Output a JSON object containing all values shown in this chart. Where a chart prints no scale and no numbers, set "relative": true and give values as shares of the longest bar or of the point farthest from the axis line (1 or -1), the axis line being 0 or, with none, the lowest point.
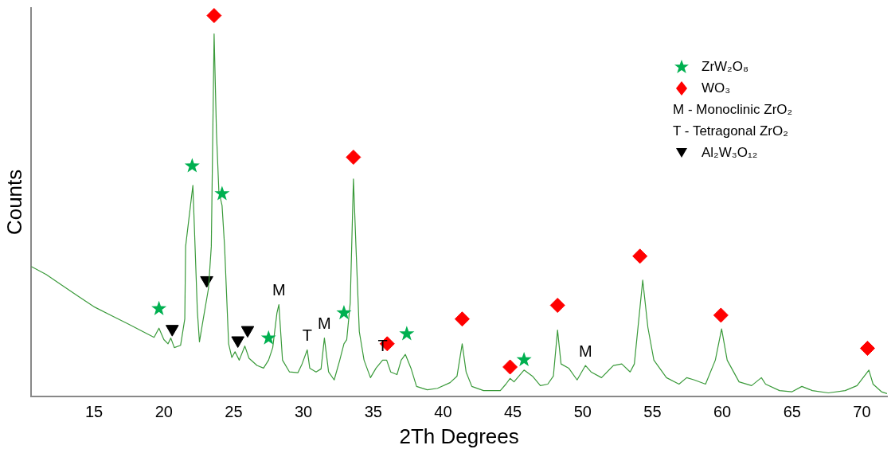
{
  "chart_data": {
    "type": "line",
    "xlabel": "2Th Degrees",
    "ylabel": "Counts",
    "relative": true,
    "xlim": [
      10.5,
      71.8
    ],
    "xticks": [
      15,
      20,
      25,
      30,
      35,
      40,
      45,
      50,
      55,
      60,
      65,
      70
    ],
    "grid": false,
    "legend": "top right",
    "series": [
      {
        "color": "#3a9a3a",
        "marker": "none",
        "x": [
          10.5,
          11.57,
          12.74,
          13.9,
          15.06,
          16.2,
          17.4,
          18.5,
          19.3,
          19.65,
          20.0,
          20.3,
          20.5,
          20.75,
          21.2,
          21.5,
          21.56,
          22.08,
          22.4,
          22.55,
          22.84,
          23.2,
          23.4,
          23.6,
          23.77,
          23.94,
          24.17,
          24.35,
          24.64,
          24.87,
          25.1,
          25.4,
          25.8,
          26.1,
          26.67,
          27.14,
          27.5,
          27.8,
          28.1,
          28.24,
          28.5,
          29.0,
          29.6,
          29.9,
          30.27,
          30.45,
          30.9,
          31.26,
          31.5,
          31.8,
          32.2,
          32.6,
          32.9,
          33.1,
          33.35,
          33.58,
          33.76,
          34.0,
          34.34,
          34.8,
          35.2,
          35.67,
          35.96,
          36.25,
          36.7,
          37.0,
          37.3,
          37.7,
          38.1,
          38.87,
          39.6,
          40.5,
          41.0,
          41.37,
          41.65,
          42.06,
          42.9,
          44.1,
          44.5,
          44.8,
          45.08,
          45.8,
          46.4,
          46.97,
          47.5,
          47.9,
          48.2,
          48.45,
          49.0,
          49.6,
          50.2,
          50.6,
          51.35,
          52.2,
          52.8,
          53.4,
          53.7,
          54.3,
          54.67,
          55.1,
          56.0,
          56.9,
          57.45,
          58.0,
          58.8,
          59.5,
          59.95,
          60.35,
          61.2,
          62.1,
          62.8,
          63.1,
          64.1,
          65.0,
          65.7,
          66.45,
          67.6,
          68.8,
          69.65,
          70.5,
          70.8,
          71.4,
          71.8
        ],
        "values": [
          0.341,
          0.32,
          0.291,
          0.262,
          0.234,
          0.213,
          0.191,
          0.17,
          0.155,
          0.179,
          0.149,
          0.138,
          0.153,
          0.128,
          0.134,
          0.203,
          0.394,
          0.554,
          0.224,
          0.143,
          0.207,
          0.284,
          0.394,
          0.952,
          0.692,
          0.539,
          0.501,
          0.394,
          0.138,
          0.102,
          0.117,
          0.095,
          0.132,
          0.1,
          0.081,
          0.074,
          0.095,
          0.128,
          0.219,
          0.241,
          0.095,
          0.064,
          0.062,
          0.085,
          0.122,
          0.074,
          0.064,
          0.072,
          0.153,
          0.064,
          0.043,
          0.095,
          0.138,
          0.149,
          0.245,
          0.571,
          0.394,
          0.17,
          0.095,
          0.049,
          0.074,
          0.095,
          0.095,
          0.064,
          0.057,
          0.095,
          0.11,
          0.074,
          0.026,
          0.017,
          0.021,
          0.036,
          0.053,
          0.138,
          0.064,
          0.026,
          0.015,
          0.015,
          0.032,
          0.047,
          0.038,
          0.069,
          0.053,
          0.028,
          0.032,
          0.053,
          0.174,
          0.085,
          0.074,
          0.043,
          0.081,
          0.064,
          0.049,
          0.081,
          0.085,
          0.064,
          0.085,
          0.305,
          0.181,
          0.095,
          0.049,
          0.032,
          0.049,
          0.043,
          0.032,
          0.095,
          0.177,
          0.095,
          0.038,
          0.028,
          0.049,
          0.032,
          0.015,
          0.012,
          0.026,
          0.015,
          0.009,
          0.015,
          0.028,
          0.069,
          0.032,
          0.012,
          0.007
        ]
      },
      {
        "type": "scatter",
        "name": "ZrW₂O₈",
        "color": "#00b050",
        "marker": "star",
        "x": [
          19.65,
          22.03,
          24.17,
          27.5,
          32.9,
          37.4,
          45.8
        ],
        "values": [
          0.23,
          0.605,
          0.532,
          0.153,
          0.219,
          0.164,
          0.096
        ]
      },
      {
        "type": "scatter",
        "name": "WO₃",
        "color": "#ff0000",
        "marker": "diamond",
        "x": [
          23.6,
          33.58,
          36.0,
          41.37,
          44.8,
          48.2,
          54.1,
          59.9,
          70.4
        ],
        "values": [
          1.0,
          0.628,
          0.138,
          0.203,
          0.077,
          0.239,
          0.368,
          0.213,
          0.126
        ]
      },
      {
        "type": "scatter",
        "name": "Al₂W₃O₁₂",
        "color": "#000000",
        "marker": "triangle",
        "x": [
          20.6,
          23.07,
          25.3,
          26.0
        ],
        "values": [
          0.177,
          0.305,
          0.147,
          0.174
        ]
      }
    ],
    "annotations": [
      "M - Monoclinic ZrO₂",
      "T - Tetragonal ZrO₂",
      {
        "text": "M",
        "x": 28.24,
        "y": 0.241
      },
      {
        "text": "M",
        "x": 31.5,
        "y": 0.153
      },
      {
        "text": "M",
        "x": 50.2,
        "y": 0.081
      },
      {
        "text": "T",
        "x": 30.27,
        "y": 0.122
      },
      {
        "text": "T",
        "x": 35.67,
        "y": 0.095
      }
    ]
  }
}
